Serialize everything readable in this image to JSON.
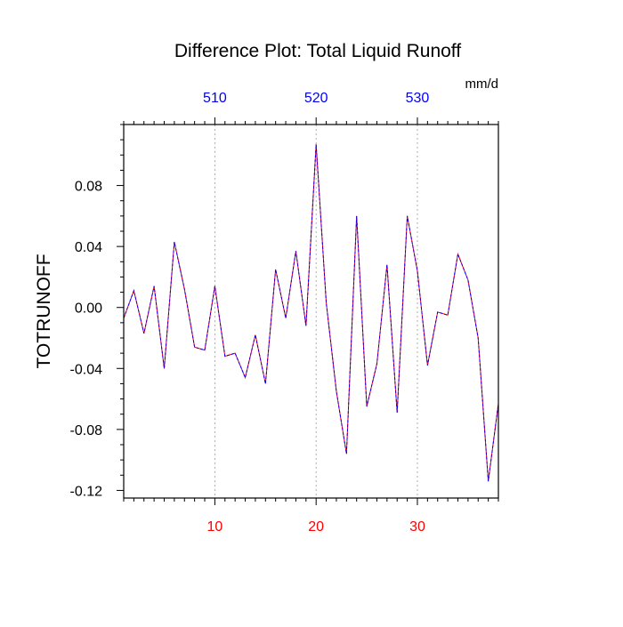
{
  "chart_data": {
    "type": "line",
    "title": "Difference Plot: Total Liquid Runoff",
    "units": "mm/d",
    "ylabel": "TOTRUNOFF",
    "xlabel": "",
    "xlim": [
      1,
      38
    ],
    "ylim": [
      -0.125,
      0.12
    ],
    "grid": "vertical dashed lines at major bottom ticks",
    "bottom_axis": {
      "major_ticks": [
        10,
        20,
        30
      ],
      "tick_labels": [
        "10",
        "20",
        "30"
      ],
      "color": "#ff0000",
      "minor_step": 1
    },
    "top_axis": {
      "tick_labels": [
        "510",
        "520",
        "530"
      ],
      "positions": [
        10,
        20,
        30
      ],
      "color": "#0000ff",
      "minor_step": 1
    },
    "left_axis": {
      "major_ticks": [
        -0.12,
        -0.08,
        -0.04,
        0.0,
        0.04,
        0.08
      ],
      "tick_labels": [
        "-0.12",
        "-0.08",
        "-0.04",
        "0.00",
        "0.04",
        "0.08"
      ],
      "minor_step": 0.01
    },
    "series": [
      {
        "color": "#ff0000",
        "style": "solid",
        "x": [
          1,
          2,
          3,
          4,
          5,
          6,
          7,
          8,
          9,
          10,
          11,
          12,
          13,
          14,
          15,
          16,
          17,
          18,
          19,
          20,
          21,
          22,
          23,
          24,
          25,
          26,
          27,
          28,
          29,
          30,
          31,
          32,
          33,
          34,
          35,
          36,
          37,
          38
        ],
        "y": [
          -0.007,
          0.011,
          -0.017,
          0.014,
          -0.04,
          0.043,
          0.012,
          -0.026,
          -0.028,
          0.014,
          -0.032,
          -0.03,
          -0.046,
          -0.018,
          -0.05,
          0.025,
          -0.007,
          0.037,
          -0.012,
          0.107,
          0.003,
          -0.055,
          -0.096,
          0.06,
          -0.065,
          -0.037,
          0.028,
          -0.069,
          0.06,
          0.024,
          -0.038,
          -0.003,
          -0.005,
          0.035,
          0.018,
          -0.02,
          -0.114,
          -0.063
        ]
      },
      {
        "color": "#0000ff",
        "style": "dashed",
        "x": [
          1,
          2,
          3,
          4,
          5,
          6,
          7,
          8,
          9,
          10,
          11,
          12,
          13,
          14,
          15,
          16,
          17,
          18,
          19,
          20,
          21,
          22,
          23,
          24,
          25,
          26,
          27,
          28,
          29,
          30,
          31,
          32,
          33,
          34,
          35,
          36,
          37,
          38
        ],
        "y": [
          -0.007,
          0.011,
          -0.017,
          0.014,
          -0.04,
          0.043,
          0.012,
          -0.026,
          -0.028,
          0.014,
          -0.032,
          -0.03,
          -0.046,
          -0.018,
          -0.05,
          0.025,
          -0.007,
          0.037,
          -0.012,
          0.107,
          0.003,
          -0.055,
          -0.096,
          0.06,
          -0.065,
          -0.037,
          0.028,
          -0.069,
          0.06,
          0.024,
          -0.038,
          -0.003,
          -0.005,
          0.035,
          0.018,
          -0.02,
          -0.114,
          -0.063
        ]
      }
    ]
  }
}
